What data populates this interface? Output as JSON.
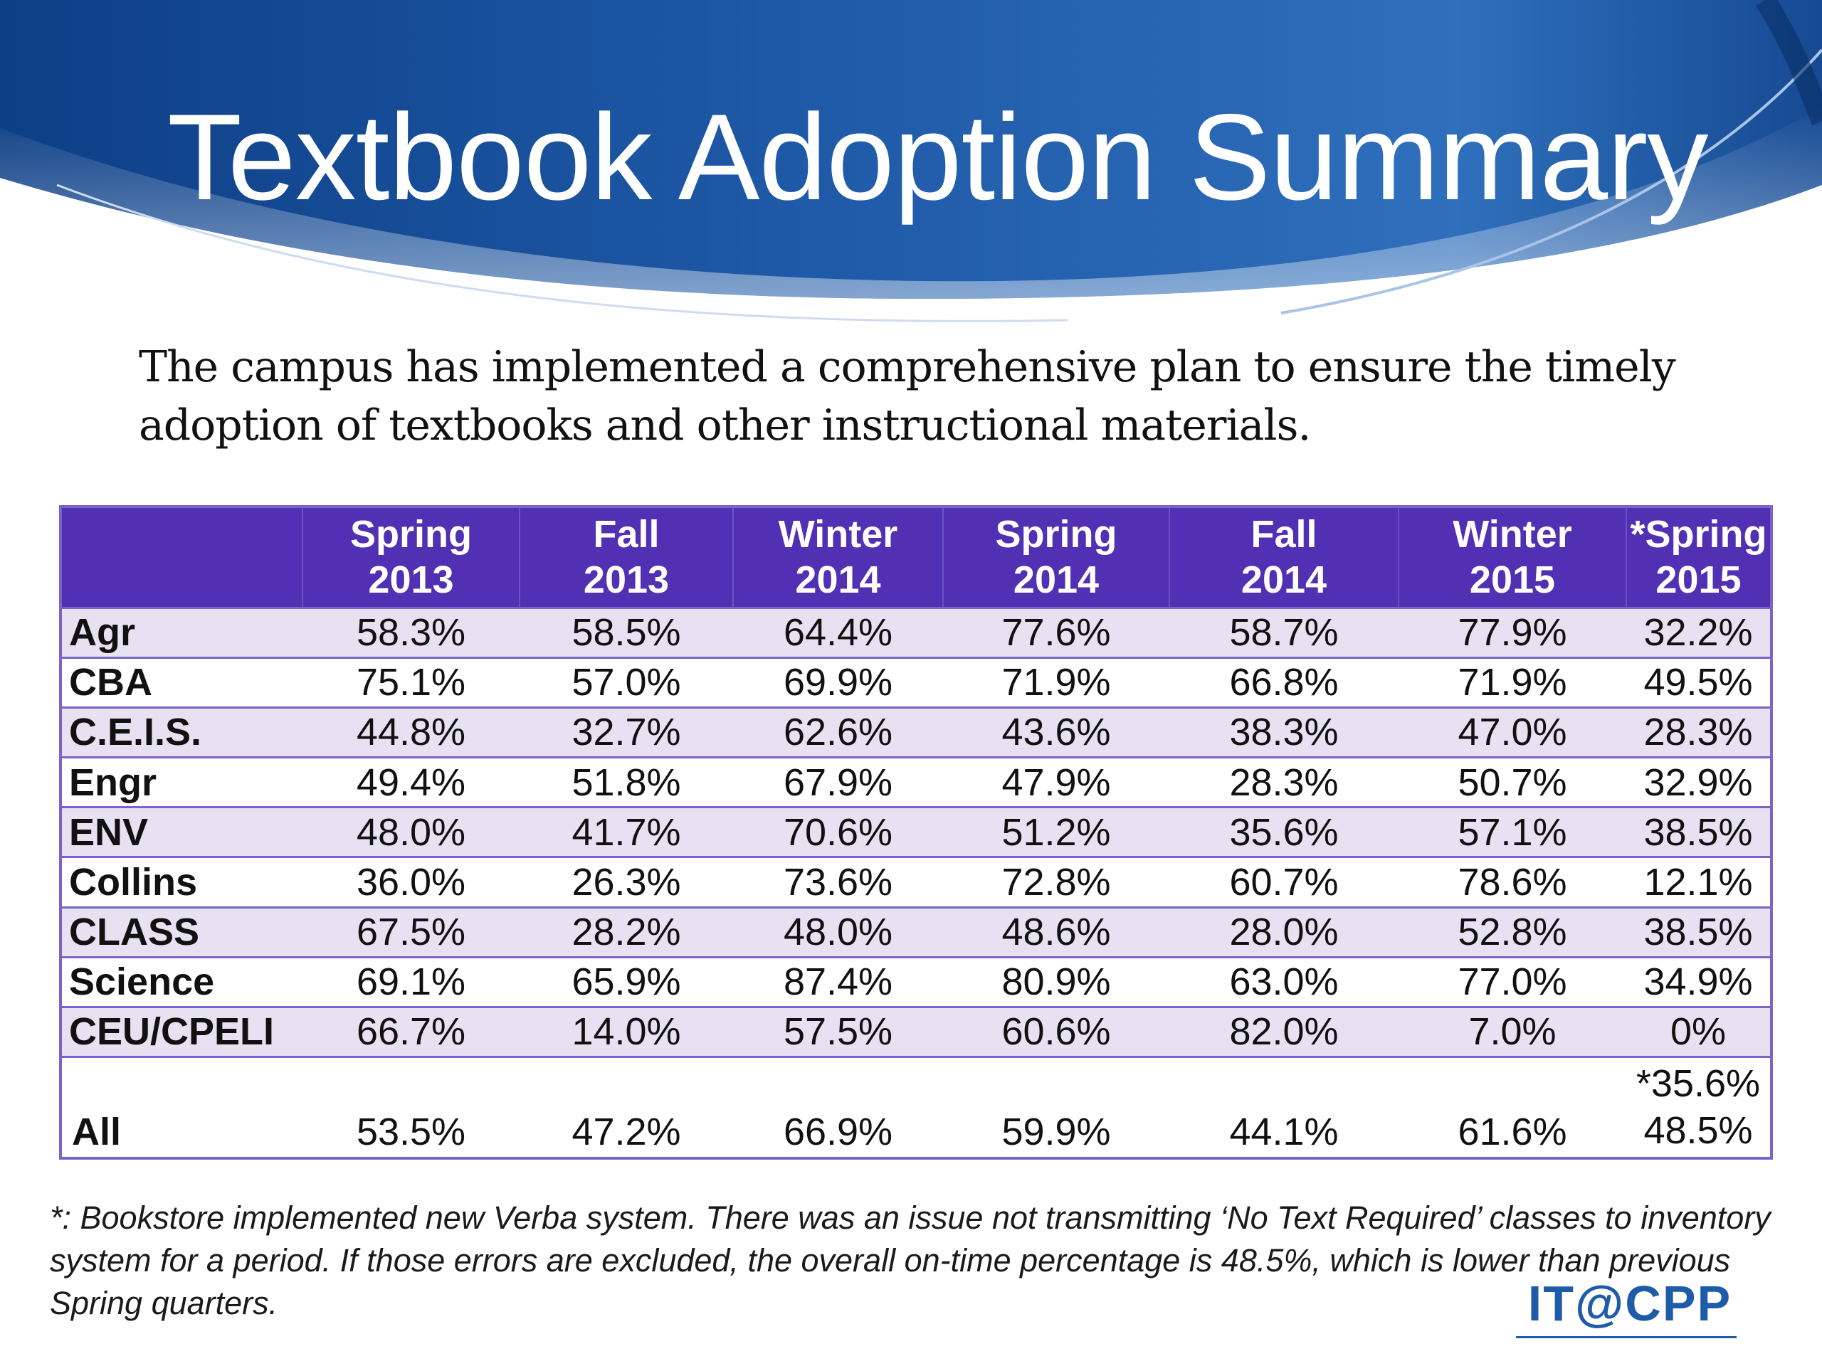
{
  "slide": {
    "title": "Textbook Adoption Summary",
    "intro": "The campus has implemented a comprehensive plan to ensure the timely adoption of textbooks and other instructional materials.",
    "footnote": "*: Bookstore implemented new Verba system.  There was an issue not transmitting ‘No Text Required’ classes to inventory system for a period.  If those errors are excluded, the overall on-time percentage is 48.5%, which is lower than previous Spring quarters.",
    "logo_text": "IT@CPP"
  },
  "table": {
    "headers": [
      {
        "line1": "",
        "line2": ""
      },
      {
        "line1": "Spring",
        "line2": "2013"
      },
      {
        "line1": "Fall",
        "line2": "2013"
      },
      {
        "line1": "Winter",
        "line2": "2014"
      },
      {
        "line1": "Spring",
        "line2": "2014"
      },
      {
        "line1": "Fall",
        "line2": "2014"
      },
      {
        "line1": "Winter",
        "line2": "2015"
      },
      {
        "line1": "*Spring",
        "line2": "2015"
      }
    ],
    "rows": [
      {
        "college": "Agr",
        "values": [
          "58.3%",
          "58.5%",
          "64.4%",
          "77.6%",
          "58.7%",
          "77.9%",
          "32.2%"
        ]
      },
      {
        "college": "CBA",
        "values": [
          "75.1%",
          "57.0%",
          "69.9%",
          "71.9%",
          "66.8%",
          "71.9%",
          "49.5%"
        ]
      },
      {
        "college": "C.E.I.S.",
        "values": [
          "44.8%",
          "32.7%",
          "62.6%",
          "43.6%",
          "38.3%",
          "47.0%",
          "28.3%"
        ]
      },
      {
        "college": "Engr",
        "values": [
          "49.4%",
          "51.8%",
          "67.9%",
          "47.9%",
          "28.3%",
          "50.7%",
          "32.9%"
        ]
      },
      {
        "college": "ENV",
        "values": [
          "48.0%",
          "41.7%",
          "70.6%",
          "51.2%",
          "35.6%",
          "57.1%",
          "38.5%"
        ]
      },
      {
        "college": "Collins",
        "values": [
          "36.0%",
          "26.3%",
          "73.6%",
          "72.8%",
          "60.7%",
          "78.6%",
          "12.1%"
        ]
      },
      {
        "college": "CLASS",
        "values": [
          "67.5%",
          "28.2%",
          "48.0%",
          "48.6%",
          "28.0%",
          "52.8%",
          "38.5%"
        ]
      },
      {
        "college": "Science",
        "values": [
          "69.1%",
          "65.9%",
          "87.4%",
          "80.9%",
          "63.0%",
          "77.0%",
          "34.9%"
        ]
      },
      {
        "college": "CEU/CPELI",
        "values": [
          "66.7%",
          "14.0%",
          "57.5%",
          "60.6%",
          "82.0%",
          "7.0%",
          "0%"
        ]
      }
    ],
    "all_row": {
      "college": "All",
      "values": [
        "53.5%",
        "47.2%",
        "66.9%",
        "59.9%",
        "44.1%",
        "61.6%"
      ],
      "last_upper": "*35.6%",
      "last_lower": "48.5%"
    }
  },
  "colors": {
    "header_band": "#1f5aa8",
    "table_header": "#5230b3",
    "table_border": "#7a63c9",
    "row_stripe": "#e6e2f2",
    "logo": "#1f5ca8"
  }
}
